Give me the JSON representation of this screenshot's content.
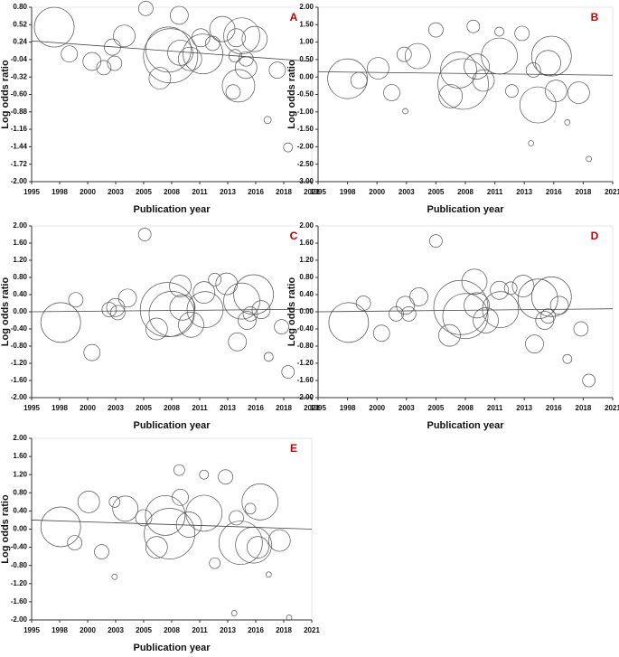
{
  "chart_data": [
    {
      "type": "bubble",
      "panel_label": "A",
      "y_label": "Log odds ratio",
      "x_label": "Publication year",
      "color": "#555555",
      "trend_color": "#444444",
      "xlim": [
        1995,
        2021
      ],
      "ylim": [
        -2,
        0.8
      ],
      "xticks": [
        1995,
        {
          "value": 1997.6,
          "label": "1998"
        },
        {
          "value": 2000.2,
          "label": "2000"
        },
        {
          "value": 2002.8,
          "label": "2003"
        },
        {
          "value": 2005.4,
          "label": "2005"
        },
        2008,
        {
          "value": 2010.6,
          "label": "2011"
        },
        {
          "value": 2013.2,
          "label": "2013"
        },
        {
          "value": 2015.8,
          "label": "2016"
        },
        {
          "value": 2018.4,
          "label": "2018"
        },
        2021
      ],
      "yticks": [
        {
          "value": 0.8,
          "label": "0.80"
        },
        0.52,
        0.24,
        -0.04,
        -0.32,
        {
          "value": -0.6,
          "label": "-0.60"
        },
        -0.88,
        -1.16,
        -1.44,
        -1.72,
        {
          "value": -2,
          "label": "-2.00"
        }
      ],
      "x": [
        1997.1,
        1998.5,
        2000.6,
        2001.7,
        2002.5,
        2002.7,
        2003.6,
        2005.6,
        2006.9,
        2007.7,
        2007.9,
        2008.7,
        2008.8,
        2009.7,
        2010.7,
        2010.9,
        2011.8,
        2012.7,
        2014.0,
        2013.9,
        2013.7,
        2014.2,
        2014.5,
        2014.9,
        2014.9,
        2015.7,
        2016.9,
        2017.8,
        2018.8
      ],
      "values": [
        0.48,
        0.05,
        -0.07,
        -0.17,
        0.16,
        -0.1,
        0.34,
        0.78,
        -0.34,
        0.12,
        0.02,
        0.67,
        0.07,
        -0.03,
        0.31,
        0.05,
        0.22,
        0.45,
        0.31,
        0.02,
        -0.56,
        -0.46,
        0.34,
        -0.17,
        -0.03,
        0.29,
        -1.01,
        -0.21,
        -1.45
      ],
      "sizes": [
        22,
        9,
        10,
        8,
        9,
        8,
        12,
        8,
        12,
        25,
        30,
        10,
        14,
        13,
        10,
        22,
        8,
        14,
        10,
        7,
        8,
        18,
        20,
        12,
        8,
        14,
        4,
        9,
        5
      ],
      "trend": {
        "x": [
          1995,
          2021
        ],
        "values": [
          0.26,
          -0.07
        ]
      }
    },
    {
      "type": "bubble",
      "panel_label": "B",
      "y_label": "Log odds ratio",
      "x_label": "Publication year",
      "color": "#555555",
      "trend_color": "#444444",
      "xlim": [
        1995,
        2021
      ],
      "ylim": [
        -3,
        2
      ],
      "xticks": [
        1995,
        {
          "value": 1997.6,
          "label": "1998"
        },
        {
          "value": 2000.2,
          "label": "2000"
        },
        {
          "value": 2002.8,
          "label": "2003"
        },
        {
          "value": 2005.4,
          "label": "2005"
        },
        2008,
        {
          "value": 2010.6,
          "label": "2011"
        },
        {
          "value": 2013.2,
          "label": "2013"
        },
        {
          "value": 2015.8,
          "label": "2016"
        },
        {
          "value": 2018.4,
          "label": "2018"
        },
        2021
      ],
      "yticks": [
        {
          "value": 2,
          "label": "2.00"
        },
        {
          "value": 1.5,
          "label": "1.50"
        },
        {
          "value": 1,
          "label": "1.00"
        },
        {
          "value": 0.5,
          "label": "0.50"
        },
        {
          "value": 0,
          "label": "0.00"
        },
        {
          "value": -0.5,
          "label": "-0.50"
        },
        {
          "value": -1,
          "label": "-1.00"
        },
        {
          "value": -1.5,
          "label": "-1.50"
        },
        {
          "value": -2,
          "label": "-2.00"
        },
        {
          "value": -2.5,
          "label": "-2.50"
        },
        {
          "value": -3,
          "label": "-3.00"
        }
      ],
      "x": [
        1997.6,
        1998.6,
        2000.3,
        2001.5,
        2002.6,
        2002.7,
        2003.8,
        2005.4,
        2006.7,
        2007.4,
        2007.8,
        2008.7,
        2009.0,
        2009.6,
        2011.0,
        2011.0,
        2012.1,
        2013.0,
        2013.8,
        2014.0,
        2014.4,
        2015.3,
        2015.6,
        2016.0,
        2017.0,
        2018.0,
        2018.9
      ],
      "values": [
        -0.05,
        -0.1,
        0.25,
        -0.45,
        0.65,
        -0.98,
        0.6,
        1.35,
        -0.55,
        0.2,
        -0.2,
        1.45,
        0.3,
        -0.1,
        1.3,
        0.6,
        -0.4,
        1.25,
        -1.9,
        0.2,
        -0.8,
        0.4,
        0.6,
        -0.4,
        -1.3,
        -0.45,
        -2.35
      ],
      "sizes": [
        22,
        9,
        12,
        9,
        8,
        3,
        14,
        8,
        13,
        20,
        28,
        7,
        14,
        12,
        5,
        20,
        7,
        8,
        3,
        8,
        20,
        14,
        22,
        12,
        3,
        12,
        3
      ],
      "trend": {
        "x": [
          1995,
          2021
        ],
        "values": [
          0.15,
          0.05
        ]
      }
    },
    {
      "type": "bubble",
      "panel_label": "C",
      "y_label": "Log odds ratio",
      "x_label": "Publication year",
      "color": "#555555",
      "trend_color": "#444444",
      "xlim": [
        1995,
        2021
      ],
      "ylim": [
        -2,
        2
      ],
      "xticks": [
        1995,
        {
          "value": 1997.6,
          "label": "1998"
        },
        {
          "value": 2000.2,
          "label": "2000"
        },
        {
          "value": 2002.8,
          "label": "2003"
        },
        {
          "value": 2005.4,
          "label": "2005"
        },
        2008,
        {
          "value": 2010.6,
          "label": "2011"
        },
        {
          "value": 2013.2,
          "label": "2013"
        },
        {
          "value": 2015.8,
          "label": "2016"
        },
        {
          "value": 2018.4,
          "label": "2018"
        },
        2021
      ],
      "yticks": [
        {
          "value": 2,
          "label": "2.00"
        },
        {
          "value": 1.6,
          "label": "1.60"
        },
        {
          "value": 1.2,
          "label": "1.20"
        },
        {
          "value": 0.8,
          "label": "0.80"
        },
        {
          "value": 0.4,
          "label": "0.40"
        },
        {
          "value": 0,
          "label": "0.00"
        },
        {
          "value": -0.4,
          "label": "-0.40"
        },
        {
          "value": -0.8,
          "label": "-0.80"
        },
        {
          "value": -1.2,
          "label": "-1.20"
        },
        {
          "value": -1.6,
          "label": "-1.60"
        },
        {
          "value": -2,
          "label": "-2.00"
        }
      ],
      "x": [
        1997.7,
        1999.1,
        2000.6,
        2002.2,
        2002.8,
        2003.0,
        2003.9,
        2005.5,
        2006.6,
        2007.6,
        2008.0,
        2008.8,
        2009.0,
        2009.8,
        2011.0,
        2011.1,
        2012.0,
        2013.1,
        2014.1,
        2014.5,
        2015.0,
        2015.3,
        2015.6,
        2016.3,
        2017.0,
        2018.2,
        2018.8
      ],
      "values": [
        -0.25,
        0.28,
        -0.95,
        0.05,
        0.1,
        -0.02,
        0.32,
        1.8,
        -0.4,
        0.05,
        -0.05,
        0.6,
        0.1,
        -0.3,
        0.45,
        0.05,
        0.75,
        0.65,
        -0.7,
        0.25,
        -0.2,
        -0.05,
        0.4,
        0.05,
        -1.05,
        -0.35,
        -1.4
      ],
      "sizes": [
        22,
        8,
        9,
        8,
        10,
        8,
        10,
        7,
        12,
        30,
        25,
        12,
        14,
        14,
        12,
        20,
        7,
        12,
        10,
        20,
        10,
        8,
        22,
        10,
        5,
        8,
        7
      ],
      "trend": {
        "x": [
          1995,
          2021
        ],
        "values": [
          0,
          0.06
        ]
      }
    },
    {
      "type": "bubble",
      "panel_label": "D",
      "y_label": "Log odds ratio",
      "x_label": "Publication year",
      "color": "#555555",
      "trend_color": "#444444",
      "xlim": [
        1995,
        2021
      ],
      "ylim": [
        -2,
        2
      ],
      "xticks": [
        1995,
        {
          "value": 1997.6,
          "label": "1998"
        },
        {
          "value": 2000.2,
          "label": "2000"
        },
        {
          "value": 2002.8,
          "label": "2003"
        },
        {
          "value": 2005.4,
          "label": "2005"
        },
        2008,
        {
          "value": 2010.6,
          "label": "2011"
        },
        {
          "value": 2013.2,
          "label": "2013"
        },
        {
          "value": 2015.8,
          "label": "2016"
        },
        {
          "value": 2018.4,
          "label": "2018"
        },
        2021
      ],
      "yticks": [
        {
          "value": 2,
          "label": "2.00"
        },
        {
          "value": 1.6,
          "label": "1.60"
        },
        {
          "value": 1.2,
          "label": "1.20"
        },
        {
          "value": 0.8,
          "label": "0.80"
        },
        {
          "value": 0.4,
          "label": "0.40"
        },
        {
          "value": 0,
          "label": "0.00"
        },
        {
          "value": -0.4,
          "label": "-0.40"
        },
        {
          "value": -0.8,
          "label": "-0.80"
        },
        {
          "value": -1.2,
          "label": "-1.20"
        },
        {
          "value": -1.6,
          "label": "-1.60"
        },
        {
          "value": -2,
          "label": "-2.00"
        }
      ],
      "x": [
        1997.7,
        1999.0,
        2000.6,
        2001.9,
        2002.7,
        2003.0,
        2003.9,
        2005.4,
        2006.6,
        2007.6,
        2008.0,
        2008.8,
        2009.0,
        2009.8,
        2011.0,
        2011.1,
        2012.0,
        2013.1,
        2014.1,
        2014.4,
        2015.0,
        2015.3,
        2015.6,
        2016.3,
        2017.0,
        2018.2,
        2018.9
      ],
      "values": [
        -0.25,
        0.2,
        -0.5,
        -0.05,
        0.15,
        -0.05,
        0.35,
        1.65,
        -0.55,
        0.1,
        -0.1,
        0.7,
        0.15,
        -0.2,
        0.5,
        0.05,
        0.55,
        0.6,
        -0.75,
        0.3,
        -0.2,
        -0.1,
        0.35,
        0.15,
        -1.1,
        -0.4,
        -1.6
      ],
      "sizes": [
        22,
        8,
        9,
        8,
        10,
        8,
        10,
        7,
        12,
        30,
        25,
        14,
        14,
        14,
        10,
        20,
        7,
        12,
        10,
        22,
        10,
        8,
        22,
        10,
        5,
        8,
        7
      ],
      "trend": {
        "x": [
          1995,
          2021
        ],
        "values": [
          0,
          0.07
        ]
      }
    },
    {
      "type": "bubble",
      "panel_label": "E",
      "y_label": "Log odds ratio",
      "x_label": "Publication year",
      "color": "#555555",
      "trend_color": "#444444",
      "xlim": [
        1995,
        2021
      ],
      "ylim": [
        -2,
        2
      ],
      "xticks": [
        1995,
        {
          "value": 1997.6,
          "label": "1998"
        },
        {
          "value": 2000.2,
          "label": "2000"
        },
        {
          "value": 2002.8,
          "label": "2003"
        },
        {
          "value": 2005.4,
          "label": "2005"
        },
        2008,
        {
          "value": 2010.6,
          "label": "2011"
        },
        {
          "value": 2013.2,
          "label": "2013"
        },
        {
          "value": 2015.8,
          "label": "2016"
        },
        {
          "value": 2018.4,
          "label": "2018"
        },
        2021
      ],
      "yticks": [
        {
          "value": 2,
          "label": "2.00"
        },
        {
          "value": 1.6,
          "label": "1.60"
        },
        {
          "value": 1.2,
          "label": "1.20"
        },
        {
          "value": 0.8,
          "label": "0.80"
        },
        {
          "value": 0.4,
          "label": "0.40"
        },
        {
          "value": 0,
          "label": "0.00"
        },
        {
          "value": -0.4,
          "label": "-0.40"
        },
        {
          "value": -0.8,
          "label": "-0.80"
        },
        {
          "value": -1.2,
          "label": "-1.20"
        },
        {
          "value": -1.6,
          "label": "-1.60"
        },
        {
          "value": -2,
          "label": "-2.00"
        }
      ],
      "x": [
        1997.7,
        1999.0,
        2000.3,
        2001.5,
        2002.7,
        2002.7,
        2003.7,
        2005.4,
        2006.6,
        2007.4,
        2007.8,
        2008.7,
        2008.8,
        2009.6,
        2011.0,
        2011.0,
        2012.0,
        2013.0,
        2013.8,
        2014.0,
        2014.4,
        2015.3,
        2015.6,
        2016.2,
        2016.0,
        2017.0,
        2018.0,
        2018.9
      ],
      "values": [
        0.05,
        -0.3,
        0.6,
        -0.5,
        0.6,
        -1.05,
        0.45,
        0.25,
        -0.4,
        0.3,
        -0.1,
        1.3,
        0.7,
        0.1,
        1.2,
        0.35,
        -0.75,
        1.15,
        -1.85,
        0.25,
        -0.3,
        0.45,
        -0.35,
        0.6,
        -0.4,
        -1.0,
        -0.25,
        -1.95
      ],
      "sizes": [
        22,
        8,
        12,
        8,
        6,
        3,
        14,
        9,
        12,
        22,
        28,
        6,
        9,
        14,
        5,
        20,
        6,
        8,
        3,
        8,
        24,
        6,
        20,
        20,
        12,
        3,
        12,
        3
      ],
      "trend": {
        "x": [
          1995,
          2021
        ],
        "values": [
          0.2,
          0
        ]
      }
    }
  ]
}
